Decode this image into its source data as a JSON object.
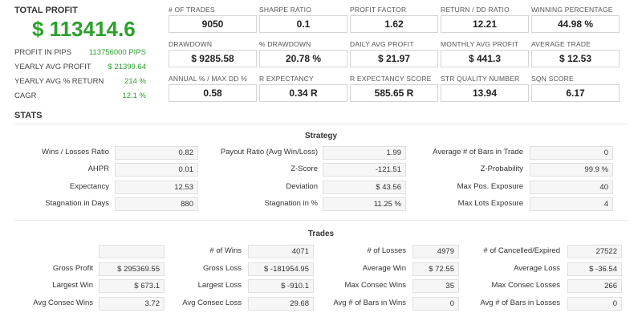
{
  "summary": {
    "total_profit_label": "TOTAL PROFIT",
    "total_profit_value": "$ 113414.6",
    "rows": [
      {
        "label": "PROFIT IN PIPS",
        "value": "113756000 PIPS"
      },
      {
        "label": "YEARLY AVG PROFIT",
        "value": "$ 21399.64"
      },
      {
        "label": "YEARLY AVG % RETURN",
        "value": "214 %"
      },
      {
        "label": "CAGR",
        "value": "12.1 %"
      }
    ]
  },
  "metrics": [
    {
      "label": "# OF TRADES",
      "value": "9050"
    },
    {
      "label": "SHARPE RATIO",
      "value": "0.1"
    },
    {
      "label": "PROFIT FACTOR",
      "value": "1.62"
    },
    {
      "label": "RETURN / DD RATIO",
      "value": "12.21"
    },
    {
      "label": "WINNING PERCENTAGE",
      "value": "44.98 %"
    },
    {
      "label": "DRAWDOWN",
      "value": "$ 9285.58"
    },
    {
      "label": "% DRAWDOWN",
      "value": "20.78 %"
    },
    {
      "label": "DAILY AVG PROFIT",
      "value": "$ 21.97"
    },
    {
      "label": "MONTHLY AVG PROFIT",
      "value": "$ 441.3"
    },
    {
      "label": "AVERAGE TRADE",
      "value": "$ 12.53"
    },
    {
      "label": "ANNUAL % / MAX DD %",
      "value": "0.58"
    },
    {
      "label": "R EXPECTANCY",
      "value": "0.34 R"
    },
    {
      "label": "R EXPECTANCY SCORE",
      "value": "585.65 R"
    },
    {
      "label": "STR QUALITY NUMBER",
      "value": "13.94"
    },
    {
      "label": "SQN SCORE",
      "value": "6.17"
    }
  ],
  "stats_title": "STATS",
  "strategy": {
    "title": "Strategy",
    "rows": [
      [
        {
          "label": "Wins / Losses Ratio",
          "value": "0.82"
        },
        {
          "label": "Payout Ratio (Avg Win/Loss)",
          "value": "1.99"
        },
        {
          "label": "Average # of Bars in Trade",
          "value": "0"
        }
      ],
      [
        {
          "label": "AHPR",
          "value": "0.01"
        },
        {
          "label": "Z-Score",
          "value": "-121.51"
        },
        {
          "label": "Z-Probability",
          "value": "99.9 %"
        }
      ],
      [
        {
          "label": "Expectancy",
          "value": "12.53"
        },
        {
          "label": "Deviation",
          "value": "$ 43.56"
        },
        {
          "label": "Max Pos. Exposure",
          "value": "40"
        }
      ],
      [
        {
          "label": "Stagnation in Days",
          "value": "880"
        },
        {
          "label": "Stagnation in %",
          "value": "11.25 %"
        },
        {
          "label": "Max Lots Exposure",
          "value": "4"
        }
      ]
    ]
  },
  "trades": {
    "title": "Trades",
    "rows": [
      [
        {
          "label": "",
          "value": ""
        },
        {
          "label": "# of Wins",
          "value": "4071"
        },
        {
          "label": "# of Losses",
          "value": "4979"
        },
        {
          "label": "# of Cancelled/Expired",
          "value": "27522"
        }
      ],
      [
        {
          "label": "Gross Profit",
          "value": "$ 295369.55"
        },
        {
          "label": "Gross Loss",
          "value": "$ -181954.95"
        },
        {
          "label": "Average Win",
          "value": "$ 72.55"
        },
        {
          "label": "Average Loss",
          "value": "$ -36.54"
        }
      ],
      [
        {
          "label": "Largest Win",
          "value": "$ 673.1"
        },
        {
          "label": "Largest Loss",
          "value": "$ -910.1"
        },
        {
          "label": "Max Consec Wins",
          "value": "35"
        },
        {
          "label": "Max Consec Losses",
          "value": "266"
        }
      ],
      [
        {
          "label": "Avg Consec Wins",
          "value": "3.72"
        },
        {
          "label": "Avg Consec Loss",
          "value": "29.68"
        },
        {
          "label": "Avg # of Bars in Wins",
          "value": "0"
        },
        {
          "label": "Avg # of Bars in Losses",
          "value": "0"
        }
      ]
    ]
  },
  "colors": {
    "profit_green": "#2ca02c"
  }
}
